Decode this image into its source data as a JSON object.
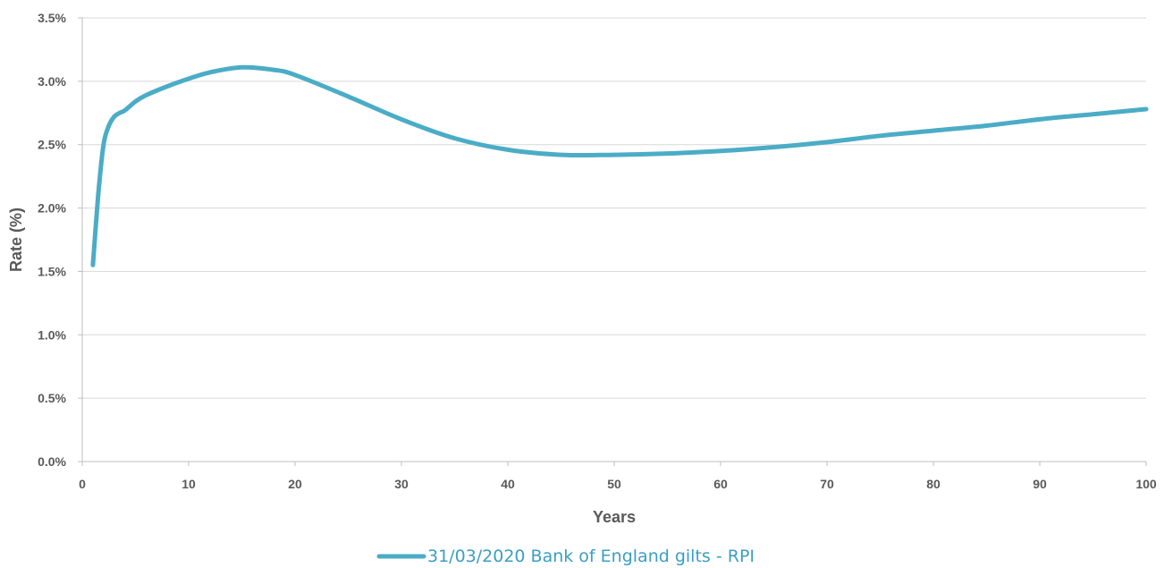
{
  "chart_data": {
    "type": "line",
    "title": "",
    "xlabel": "Years",
    "ylabel": "Rate (%)",
    "xlim": [
      0,
      100
    ],
    "ylim": [
      0,
      0.035
    ],
    "x_ticks": [
      0,
      10,
      20,
      30,
      40,
      50,
      60,
      70,
      80,
      90,
      100
    ],
    "y_ticks": [
      0,
      0.005,
      0.01,
      0.015,
      0.02,
      0.025,
      0.03,
      0.035
    ],
    "y_tick_labels": [
      "0.0%",
      "0.5%",
      "1.0%",
      "1.5%",
      "2.0%",
      "2.5%",
      "3.0%",
      "3.5%"
    ],
    "grid": "horizontal",
    "legend_position": "bottom",
    "series": [
      {
        "name": "31/03/2020 Bank of England gilts - RPI",
        "color": "#4bacc6",
        "x": [
          1,
          1.5,
          2,
          2.5,
          3,
          3.5,
          4,
          5,
          6,
          8,
          10,
          12,
          15,
          18,
          20,
          25,
          30,
          35,
          40,
          45,
          50,
          55,
          60,
          65,
          70,
          75,
          80,
          85,
          90,
          95,
          100
        ],
        "y": [
          0.0155,
          0.021,
          0.025,
          0.0265,
          0.0272,
          0.0275,
          0.0277,
          0.0284,
          0.0289,
          0.0296,
          0.0302,
          0.0307,
          0.0311,
          0.0309,
          0.0305,
          0.0288,
          0.027,
          0.0255,
          0.0246,
          0.0242,
          0.0242,
          0.0243,
          0.0245,
          0.0248,
          0.0252,
          0.0257,
          0.0261,
          0.0265,
          0.027,
          0.0274,
          0.0278
        ]
      }
    ]
  }
}
